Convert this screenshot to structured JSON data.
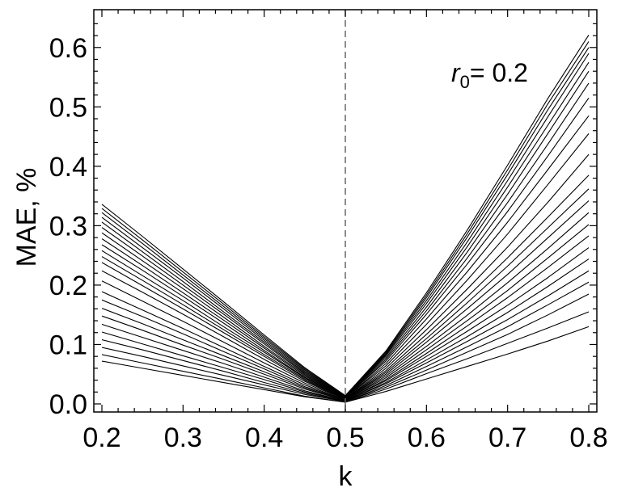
{
  "chart_data": {
    "type": "line",
    "title": "",
    "xlabel": "k",
    "ylabel": "MAE, %",
    "xlim": [
      0.2,
      0.8
    ],
    "ylim": [
      0.0,
      0.65
    ],
    "xticks": [
      0.2,
      0.3,
      0.4,
      0.5,
      0.6,
      0.7,
      0.8
    ],
    "xtick_labels": [
      "0.2",
      "0.3",
      "0.4",
      "0.5",
      "0.6",
      "0.7",
      "0.8"
    ],
    "yticks": [
      0.0,
      0.1,
      0.2,
      0.3,
      0.4,
      0.5,
      0.6
    ],
    "ytick_labels": [
      "0.0",
      "0.1",
      "0.2",
      "0.3",
      "0.4",
      "0.5",
      "0.6"
    ],
    "grid": false,
    "legend": "none",
    "reference_line": {
      "x": 0.5,
      "style": "dashed",
      "color": "#666666"
    },
    "annotation": {
      "prefix": "r",
      "subscript": "0",
      "text": "= 0.2"
    },
    "line_color": "#000000",
    "x": [
      0.2,
      0.25,
      0.3,
      0.35,
      0.4,
      0.45,
      0.5,
      0.55,
      0.6,
      0.65,
      0.7,
      0.75,
      0.8
    ],
    "series": [
      {
        "values": [
          0.072,
          0.06,
          0.048,
          0.036,
          0.024,
          0.012,
          0.003,
          0.021,
          0.042,
          0.063,
          0.084,
          0.106,
          0.13
        ]
      },
      {
        "values": [
          0.083,
          0.069,
          0.055,
          0.041,
          0.027,
          0.013,
          0.003,
          0.025,
          0.051,
          0.076,
          0.102,
          0.128,
          0.155
        ]
      },
      {
        "values": [
          0.095,
          0.08,
          0.064,
          0.048,
          0.032,
          0.016,
          0.004,
          0.028,
          0.057,
          0.087,
          0.117,
          0.15,
          0.185
        ]
      },
      {
        "values": [
          0.108,
          0.091,
          0.073,
          0.055,
          0.036,
          0.018,
          0.004,
          0.031,
          0.063,
          0.096,
          0.13,
          0.167,
          0.205
        ]
      },
      {
        "values": [
          0.121,
          0.101,
          0.081,
          0.061,
          0.041,
          0.02,
          0.005,
          0.034,
          0.069,
          0.105,
          0.142,
          0.182,
          0.224
        ]
      },
      {
        "values": [
          0.134,
          0.112,
          0.09,
          0.068,
          0.045,
          0.022,
          0.005,
          0.036,
          0.074,
          0.113,
          0.154,
          0.198,
          0.244
        ]
      },
      {
        "values": [
          0.148,
          0.124,
          0.099,
          0.075,
          0.05,
          0.025,
          0.006,
          0.039,
          0.08,
          0.122,
          0.166,
          0.213,
          0.263
        ]
      },
      {
        "values": [
          0.161,
          0.135,
          0.108,
          0.081,
          0.054,
          0.027,
          0.006,
          0.041,
          0.085,
          0.131,
          0.179,
          0.23,
          0.283
        ]
      },
      {
        "values": [
          0.175,
          0.147,
          0.118,
          0.088,
          0.059,
          0.029,
          0.007,
          0.044,
          0.091,
          0.14,
          0.191,
          0.246,
          0.302
        ]
      },
      {
        "values": [
          0.189,
          0.158,
          0.127,
          0.095,
          0.063,
          0.032,
          0.007,
          0.047,
          0.097,
          0.149,
          0.204,
          0.262,
          0.322
        ]
      },
      {
        "values": [
          0.207,
          0.173,
          0.139,
          0.104,
          0.069,
          0.035,
          0.008,
          0.05,
          0.104,
          0.16,
          0.218,
          0.28,
          0.342
        ]
      },
      {
        "values": [
          0.224,
          0.188,
          0.151,
          0.113,
          0.075,
          0.038,
          0.008,
          0.053,
          0.11,
          0.17,
          0.232,
          0.297,
          0.362
        ]
      },
      {
        "values": [
          0.238,
          0.199,
          0.16,
          0.12,
          0.08,
          0.04,
          0.009,
          0.056,
          0.117,
          0.18,
          0.246,
          0.315,
          0.385
        ]
      },
      {
        "values": [
          0.248,
          0.208,
          0.167,
          0.125,
          0.083,
          0.042,
          0.009,
          0.06,
          0.125,
          0.193,
          0.264,
          0.34,
          0.42
        ]
      },
      {
        "values": [
          0.258,
          0.216,
          0.174,
          0.13,
          0.087,
          0.044,
          0.01,
          0.064,
          0.134,
          0.208,
          0.286,
          0.37,
          0.455
        ]
      },
      {
        "values": [
          0.268,
          0.225,
          0.181,
          0.136,
          0.09,
          0.045,
          0.01,
          0.068,
          0.143,
          0.222,
          0.306,
          0.395,
          0.485
        ]
      },
      {
        "values": [
          0.278,
          0.233,
          0.187,
          0.141,
          0.094,
          0.047,
          0.011,
          0.072,
          0.151,
          0.235,
          0.324,
          0.418,
          0.515
        ]
      },
      {
        "values": [
          0.288,
          0.241,
          0.194,
          0.146,
          0.097,
          0.049,
          0.011,
          0.075,
          0.157,
          0.245,
          0.339,
          0.438,
          0.54
        ]
      },
      {
        "values": [
          0.297,
          0.249,
          0.2,
          0.151,
          0.101,
          0.051,
          0.012,
          0.078,
          0.163,
          0.255,
          0.353,
          0.456,
          0.56
        ]
      },
      {
        "values": [
          0.306,
          0.256,
          0.206,
          0.155,
          0.104,
          0.053,
          0.012,
          0.081,
          0.169,
          0.264,
          0.365,
          0.47,
          0.575
        ]
      },
      {
        "values": [
          0.314,
          0.263,
          0.212,
          0.16,
          0.107,
          0.055,
          0.013,
          0.083,
          0.174,
          0.272,
          0.376,
          0.484,
          0.59
        ]
      },
      {
        "values": [
          0.322,
          0.27,
          0.217,
          0.164,
          0.11,
          0.057,
          0.013,
          0.085,
          0.179,
          0.28,
          0.386,
          0.496,
          0.6
        ]
      },
      {
        "values": [
          0.329,
          0.276,
          0.222,
          0.168,
          0.113,
          0.059,
          0.014,
          0.087,
          0.183,
          0.286,
          0.394,
          0.506,
          0.61
        ]
      },
      {
        "values": [
          0.336,
          0.282,
          0.227,
          0.172,
          0.116,
          0.061,
          0.014,
          0.089,
          0.187,
          0.292,
          0.402,
          0.515,
          0.621
        ]
      }
    ]
  }
}
